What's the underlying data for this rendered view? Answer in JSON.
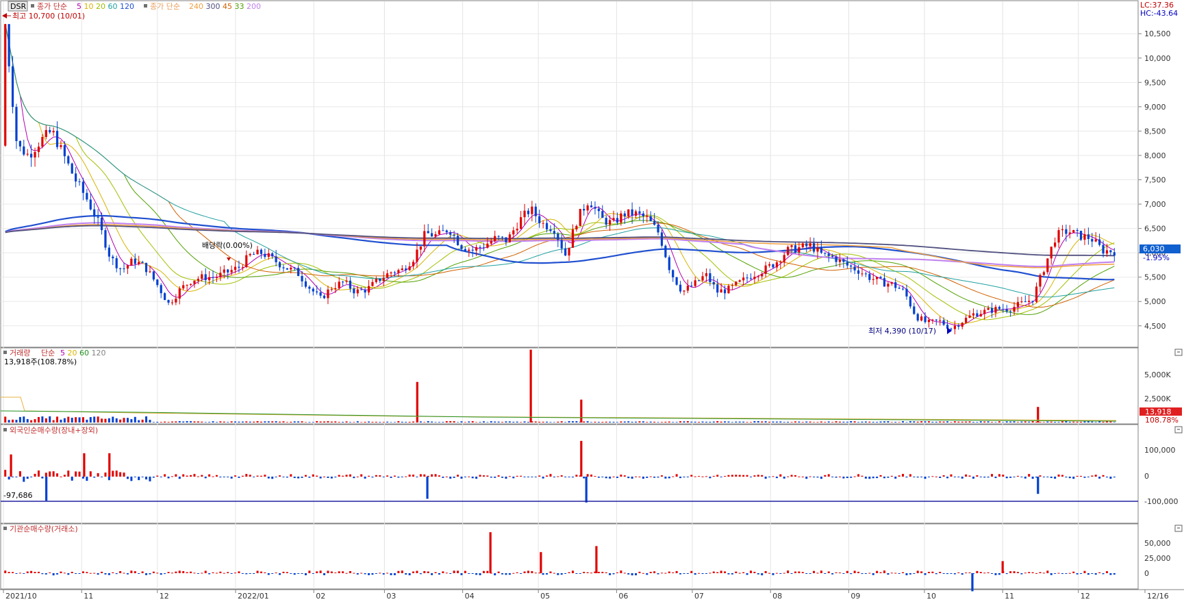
{
  "ticker": "DSR",
  "price_legend": {
    "prefix": "종가 단순",
    "ma": [
      {
        "label": "5",
        "color": "#b000b0"
      },
      {
        "label": "10",
        "color": "#d8b400"
      },
      {
        "label": "20",
        "color": "#a0c000"
      },
      {
        "label": "60",
        "color": "#20a0a0"
      },
      {
        "label": "120",
        "color": "#2050d0"
      }
    ],
    "prefix2": "종가 단순",
    "ma2": [
      {
        "label": "240",
        "color": "#f0a040"
      },
      {
        "label": "300",
        "color": "#505080"
      },
      {
        "label": "45",
        "color": "#d06000"
      },
      {
        "label": "33",
        "color": "#50a000"
      },
      {
        "label": "200",
        "color": "#c080f0"
      }
    ]
  },
  "high_note": "최고 10,700 (10/01)",
  "low_note": "최저 4,390 (10/17)",
  "dividend_note": "배당락(0.00%)",
  "lc_label": "LC:37.36",
  "hc_label": "HC:-43.64",
  "current_price_label": "6,030",
  "current_change_label": "-1.95%",
  "price_axis_labels": [
    "10,500",
    "10,000",
    "9,500",
    "9,000",
    "8,500",
    "8,000",
    "7,500",
    "7,000",
    "6,500",
    "6,000",
    "5,500",
    "5,000",
    "4,500"
  ],
  "volume_panel": {
    "title": "거래량",
    "legend_prefix": "단순",
    "ma": [
      {
        "label": "5",
        "color": "#b000b0"
      },
      {
        "label": "20",
        "color": "#d8b400"
      },
      {
        "label": "60",
        "color": "#209020"
      },
      {
        "label": "120",
        "color": "#808080"
      }
    ],
    "info": "13,918주(108.78%)",
    "axis_labels": [
      "5,000K",
      "2,500K"
    ],
    "current_label": "13,918",
    "current_pct": "108.78%"
  },
  "foreign_panel": {
    "title": "외국인순매수량(장내+장외)",
    "axis_labels": [
      "100,000",
      "0",
      "-100,000"
    ],
    "marker_label": "-97,686"
  },
  "inst_panel": {
    "title": "기관순매수량(거래소)",
    "axis_labels": [
      "50,000",
      "25,000",
      "0",
      "-25,000"
    ]
  },
  "date_axis": [
    "2021/10",
    "11",
    "12",
    "2022/01",
    "02",
    "03",
    "04",
    "05",
    "06",
    "07",
    "08",
    "09",
    "10",
    "11",
    "12",
    "12/16"
  ],
  "chart_data": {
    "type": "candlestick",
    "x_start": "2021/10/01",
    "x_end": "2022/12/16",
    "ylim": [
      4300,
      10700
    ],
    "price_path": [
      10700,
      8200,
      8000,
      8300,
      8500,
      8000,
      7500,
      7100,
      6600,
      5900,
      5650,
      5850,
      5700,
      5350,
      4950,
      5250,
      5450,
      5500,
      5500,
      5600,
      5700,
      5950,
      6000,
      5850,
      5700,
      5600,
      5300,
      5050,
      5300,
      5400,
      5200,
      5250,
      5450,
      5600,
      5650,
      5900,
      6400,
      6350,
      6500,
      6150,
      6050,
      6150,
      6300,
      6250,
      6650,
      6900,
      6600,
      6500,
      5950,
      6700,
      7100,
      6700,
      6600,
      6800,
      6800,
      6700,
      6400,
      5600,
      5200,
      5350,
      5550,
      5200,
      5250,
      5400,
      5550,
      5650,
      5800,
      6050,
      6100,
      6150,
      5950,
      5900,
      5750,
      5650,
      5500,
      5400,
      5350,
      5200,
      4700,
      4550,
      4600,
      4450,
      4600,
      4750,
      4800,
      4850,
      4850,
      4950,
      5050,
      5700,
      6350,
      6450,
      6350,
      6300,
      6050,
      6030
    ],
    "price_marks": [
      {
        "name": "high",
        "date": "10/01",
        "value": 10700
      },
      {
        "name": "low",
        "date": "10/17",
        "value": 4390
      }
    ],
    "volume_spikes": [
      {
        "date": "2022/03/14",
        "value": 3900000
      },
      {
        "date": "2022/04/28",
        "value": 7000000
      },
      {
        "date": "2022/05/18",
        "value": 2200000
      },
      {
        "date": "2022/11/15",
        "value": 1500000
      }
    ],
    "foreign_spikes": [
      {
        "date": "2021/10/04",
        "value": 90000
      },
      {
        "date": "2021/10/18",
        "value": -97686
      },
      {
        "date": "2021/11/02",
        "value": 95000
      },
      {
        "date": "2021/11/12",
        "value": 95000
      },
      {
        "date": "2022/03/18",
        "value": -90000
      },
      {
        "date": "2022/05/18",
        "value": 145000
      },
      {
        "date": "2022/05/20",
        "value": -105000
      },
      {
        "date": "2022/11/15",
        "value": -70000
      }
    ],
    "inst_spikes": [
      {
        "date": "2022/04/12",
        "value": 68000
      },
      {
        "date": "2022/05/02",
        "value": 35000
      },
      {
        "date": "2022/05/24",
        "value": 45000
      },
      {
        "date": "2022/10/20",
        "value": -30000
      },
      {
        "date": "2022/11/01",
        "value": 20000
      }
    ]
  }
}
